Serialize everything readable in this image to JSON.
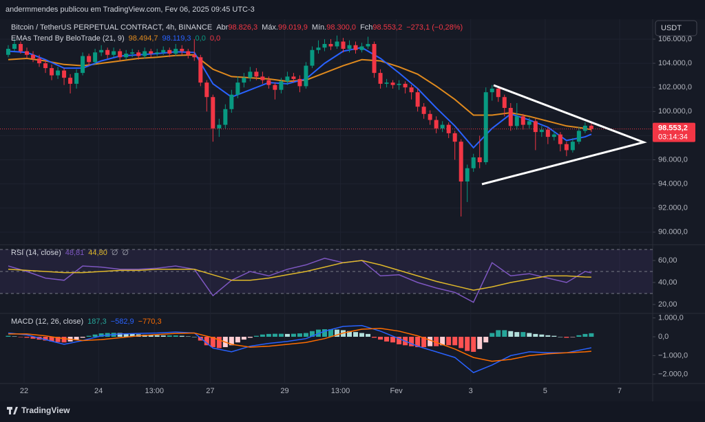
{
  "header": "andermmendes publicou em TradingView.com, Fev 06, 2025 09:45 UTC-3",
  "currency": "USDT",
  "brand": "TradingView",
  "chart_data": [
    {
      "type": "candlestick",
      "title": "Bitcoin / TetherUS PERPETUAL CONTRACT, 4h, BINANCE",
      "ohlc_legend": [
        {
          "label": "Abr",
          "value": "98.826,3"
        },
        {
          "label": "Máx.",
          "value": "99.019,9"
        },
        {
          "label": "Mín.",
          "value": "98.300,0"
        },
        {
          "label": "Fch",
          "value": "98.553,2"
        }
      ],
      "change": "−273,1 (−0,28%)",
      "up_color": "#089981",
      "down_color": "#f23645",
      "open": [
        104700,
        105200,
        105600,
        105000,
        104700,
        104400,
        104000,
        103600,
        103000,
        103400,
        102800,
        102300,
        103200,
        104600,
        104100,
        104900,
        105100,
        104700,
        105000,
        104500,
        104800,
        104900,
        104600,
        105000,
        104800,
        104900,
        105100,
        104800,
        105200,
        105000,
        104700,
        104500,
        102400,
        101200,
        98600,
        98900,
        100200,
        101400,
        102400,
        102800,
        103300,
        102900,
        102600,
        102200,
        101800,
        102500,
        102900,
        102700,
        102100,
        103800,
        105100,
        105300,
        105600,
        105400,
        105800,
        105200,
        105500,
        105100,
        105400,
        105600,
        103200,
        102300,
        102400,
        102200,
        102300,
        102000,
        101600,
        100400,
        99800,
        99300,
        98600,
        98900,
        98200,
        97500,
        94200,
        95300,
        96200,
        95800,
        101600,
        101900,
        101200,
        100300,
        98800,
        99600,
        98900,
        99200,
        98300,
        98500,
        97900,
        98100,
        97300,
        96800,
        97500,
        98400,
        98826.3
      ],
      "high": [
        105500,
        106000,
        105800,
        105300,
        105000,
        104700,
        104300,
        103900,
        103700,
        103600,
        103100,
        103500,
        104900,
        104800,
        105200,
        105500,
        105300,
        105300,
        105200,
        105100,
        105200,
        105100,
        105300,
        105200,
        105200,
        105400,
        105300,
        105600,
        105500,
        105200,
        106000,
        104700,
        102600,
        101400,
        99400,
        100600,
        101800,
        102900,
        103200,
        103700,
        103600,
        103300,
        102900,
        102400,
        102800,
        103300,
        103200,
        103000,
        104100,
        105400,
        105900,
        106000,
        106000,
        106300,
        106100,
        105900,
        105800,
        105700,
        106200,
        105800,
        103500,
        102700,
        102600,
        102600,
        102500,
        102200,
        101900,
        100700,
        100100,
        99600,
        99200,
        99100,
        98400,
        97700,
        95600,
        96500,
        98000,
        102000,
        102200,
        102100,
        101400,
        100700,
        100700,
        99800,
        99500,
        99400,
        98800,
        98700,
        98400,
        98300,
        97500,
        97800,
        98700,
        99100,
        99019.9
      ],
      "low": [
        104500,
        105000,
        104800,
        104400,
        104100,
        103700,
        103200,
        102600,
        102700,
        102200,
        101500,
        101900,
        103000,
        103800,
        103900,
        104600,
        104400,
        104500,
        104200,
        104300,
        104500,
        104300,
        104400,
        104500,
        104600,
        104700,
        104500,
        104600,
        104700,
        104400,
        104200,
        102100,
        100000,
        97500,
        97900,
        98600,
        99900,
        101100,
        102000,
        102500,
        102600,
        102300,
        101900,
        101000,
        101500,
        102200,
        102400,
        101600,
        101900,
        103600,
        104800,
        105000,
        105100,
        105200,
        104900,
        104900,
        104800,
        104900,
        105200,
        102800,
        101900,
        102000,
        101900,
        101800,
        101500,
        101000,
        100000,
        99400,
        98900,
        98200,
        98300,
        97800,
        96000,
        91300,
        92500,
        95000,
        95300,
        95600,
        100900,
        100800,
        99600,
        98400,
        98500,
        98500,
        98600,
        96800,
        97900,
        97300,
        97600,
        96700,
        96300,
        96600,
        97300,
        98200,
        98300
      ],
      "close": [
        105200,
        105600,
        105000,
        104700,
        104400,
        104000,
        103600,
        103000,
        103400,
        102800,
        102300,
        103200,
        104600,
        104100,
        104900,
        105100,
        104700,
        105000,
        104500,
        104800,
        104900,
        104600,
        105000,
        104800,
        104900,
        105100,
        104800,
        105200,
        105000,
        104700,
        104500,
        102400,
        101200,
        98600,
        98900,
        100200,
        101400,
        102400,
        102800,
        103300,
        102900,
        102600,
        102200,
        101800,
        102500,
        102900,
        102700,
        102100,
        103800,
        105100,
        105300,
        105600,
        105400,
        105800,
        105200,
        105500,
        105100,
        105400,
        105600,
        103200,
        102300,
        102400,
        102200,
        102300,
        102000,
        101600,
        100400,
        99800,
        99300,
        98600,
        98900,
        98200,
        97500,
        94200,
        95300,
        96200,
        95800,
        101600,
        101900,
        101200,
        100300,
        98800,
        99600,
        98900,
        99200,
        98300,
        98500,
        97900,
        98100,
        97300,
        96800,
        97500,
        98400,
        98826.3,
        98553.2
      ],
      "last_price": {
        "value": 98553.2,
        "label": "98.553,2"
      },
      "countdown": "03:14:34",
      "xlim": [
        -1.33,
        103.89
      ],
      "ylim": [
        89020,
        107650
      ],
      "yticks": [
        {
          "value": 90000,
          "label": "90.000,0"
        },
        {
          "value": 92000,
          "label": "92.000,0"
        },
        {
          "value": 94000,
          "label": "94.000,0"
        },
        {
          "value": 96000,
          "label": "96.000,0"
        },
        {
          "value": 98000,
          "label": "98.000,0"
        },
        {
          "value": 100000,
          "label": "100.000,0"
        },
        {
          "value": 102000,
          "label": "102.000,0"
        },
        {
          "value": 104000,
          "label": "104.000,0"
        },
        {
          "value": 106000,
          "label": "106.000,0"
        }
      ],
      "xticks": [
        {
          "value": 2.56,
          "label": "22"
        },
        {
          "value": 14.56,
          "label": "24"
        },
        {
          "value": 23.56,
          "label": "13:00"
        },
        {
          "value": 32.56,
          "label": "27"
        },
        {
          "value": 44.56,
          "label": "29"
        },
        {
          "value": 53.56,
          "label": "13:00"
        },
        {
          "value": 62.56,
          "label": "Fev"
        },
        {
          "value": 74.56,
          "label": "3"
        },
        {
          "value": 86.56,
          "label": "5"
        },
        {
          "value": 98.56,
          "label": "7"
        }
      ],
      "grid": true,
      "indicator": {
        "name": "EMAs Trend By BeloTrade (21, 9)",
        "x": [
          0,
          3,
          6,
          9,
          12,
          15,
          18,
          21,
          24,
          27,
          30,
          33,
          36,
          39,
          42,
          45,
          48,
          51,
          54,
          57,
          60,
          63,
          66,
          69,
          72,
          75,
          78,
          81,
          84,
          87,
          90,
          93,
          94
        ],
        "series": [
          {
            "color": "#e08a1e",
            "values": [
              104300,
              104400,
              104200,
              103900,
              103800,
              104000,
              104200,
              104400,
              104500,
              104650,
              104700,
              103500,
              102900,
              102800,
              102700,
              102500,
              102600,
              103200,
              103800,
              104300,
              104200,
              103700,
              103100,
              102100,
              101000,
              99700,
              99700,
              99900,
              99600,
              99200,
              98800,
              98600,
              98494.7
            ]
          },
          {
            "color": "#2962ff",
            "values": [
              105000,
              104900,
              104300,
              103600,
              103600,
              104200,
              104600,
              104700,
              104800,
              104950,
              104900,
              102300,
              101200,
              101800,
              102400,
              102300,
              102700,
              104000,
              105000,
              105300,
              104400,
              103200,
              101900,
              100300,
              98800,
              97000,
              98600,
              99800,
              99300,
              98700,
              97600,
              97900,
              98119.3
            ]
          }
        ],
        "legend_values": [
          "98.494,7",
          "98.119,3",
          "0,0",
          "0,0"
        ],
        "legend_colors": [
          "#e08a1e",
          "#2962ff",
          "#089981",
          "#f23645"
        ]
      }
    },
    {
      "type": "line",
      "title": "RSI (14, close)",
      "x": [
        0,
        3,
        6,
        9,
        12,
        15,
        18,
        21,
        24,
        27,
        30,
        33,
        36,
        39,
        42,
        45,
        48,
        51,
        54,
        57,
        60,
        63,
        66,
        69,
        72,
        75,
        78,
        81,
        84,
        87,
        90,
        93,
        94
      ],
      "series": [
        {
          "color": "#7e57c2",
          "values": [
            55,
            50,
            44,
            42,
            55,
            54,
            52,
            52,
            53,
            55,
            52,
            28,
            42,
            50,
            46,
            52,
            56,
            62,
            58,
            60,
            46,
            47,
            40,
            35,
            31,
            22,
            58,
            46,
            48,
            44,
            40,
            50,
            48.81
          ]
        },
        {
          "color": "#e0b92a",
          "values": [
            52,
            51,
            50,
            49,
            49,
            50,
            51,
            51,
            52,
            52,
            52,
            47,
            42,
            42,
            44,
            47,
            50,
            54,
            58,
            60,
            56,
            51,
            46,
            41,
            37,
            33,
            36,
            40,
            43,
            46,
            46,
            45,
            44.8
          ]
        }
      ],
      "legend_values": [
        "48,81",
        "44,80",
        "∅",
        "∅"
      ],
      "legend_colors": [
        "#7e57c2",
        "#e0b92a",
        "#b2b5be",
        "#b2b5be"
      ],
      "bands": [
        70,
        50,
        30
      ],
      "band_fill": "rgba(126,87,194,0.12)",
      "ylim": [
        12.5,
        73.75
      ],
      "yticks": [
        {
          "value": 20,
          "label": "20,00"
        },
        {
          "value": 40,
          "label": "40,00"
        },
        {
          "value": 60,
          "label": "60,00"
        }
      ]
    },
    {
      "type": "line",
      "title": "MACD (12, 26, close)",
      "x": [
        0,
        3,
        6,
        9,
        12,
        15,
        18,
        21,
        24,
        27,
        30,
        33,
        36,
        39,
        42,
        45,
        48,
        51,
        54,
        57,
        60,
        63,
        66,
        69,
        72,
        75,
        78,
        81,
        84,
        87,
        90,
        93,
        94
      ],
      "series": [
        {
          "color": "#2962ff",
          "values": [
            200,
            100,
            -150,
            -400,
            -200,
            50,
            150,
            180,
            200,
            250,
            200,
            -600,
            -800,
            -500,
            -350,
            -250,
            -100,
            300,
            550,
            600,
            300,
            -100,
            -500,
            -800,
            -1100,
            -1900,
            -1500,
            -1000,
            -800,
            -850,
            -850,
            -650,
            -582.9
          ]
        },
        {
          "color": "#ff6d00",
          "values": [
            150,
            150,
            50,
            -100,
            -200,
            -150,
            -50,
            50,
            120,
            180,
            200,
            -50,
            -400,
            -550,
            -500,
            -400,
            -300,
            -100,
            200,
            400,
            450,
            300,
            50,
            -300,
            -650,
            -1100,
            -1300,
            -1200,
            -1000,
            -900,
            -850,
            -800,
            -770.3
          ]
        }
      ],
      "histogram": [
        50,
        20,
        -20,
        -50,
        -100,
        -150,
        -200,
        -250,
        -280,
        -300,
        -250,
        -150,
        -50,
        50,
        120,
        180,
        200,
        210,
        200,
        180,
        150,
        130,
        110,
        100,
        80,
        70,
        70,
        70,
        50,
        20,
        0,
        -200,
        -450,
        -550,
        -600,
        -550,
        -450,
        -300,
        -150,
        -50,
        50,
        120,
        150,
        160,
        160,
        150,
        160,
        180,
        200,
        300,
        380,
        400,
        400,
        380,
        350,
        300,
        250,
        200,
        150,
        -50,
        -150,
        -250,
        -300,
        -400,
        -450,
        -500,
        -550,
        -550,
        -500,
        -500,
        -450,
        -450,
        -450,
        -600,
        -750,
        -800,
        -650,
        -300,
        200,
        350,
        350,
        300,
        250,
        250,
        200,
        150,
        120,
        80,
        50,
        0,
        -50,
        -20,
        80,
        150,
        187.3
      ],
      "hist_colors": [
        "#26a69a",
        "#b2dfdb",
        "#ff5252",
        "#ffcdd2"
      ],
      "legend_values": [
        "187,3",
        "−582,9",
        "−770,3"
      ],
      "legend_colors": [
        "#26a69a",
        "#2962ff",
        "#ff6d00"
      ],
      "ylim": [
        -2445,
        1204
      ],
      "yticks": [
        {
          "value": 1000,
          "label": "1.000,0"
        },
        {
          "value": 0,
          "label": "0,0"
        },
        {
          "value": -1000,
          "label": "−1.000,0"
        },
        {
          "value": -2000,
          "label": "−2.000,0"
        }
      ]
    }
  ]
}
